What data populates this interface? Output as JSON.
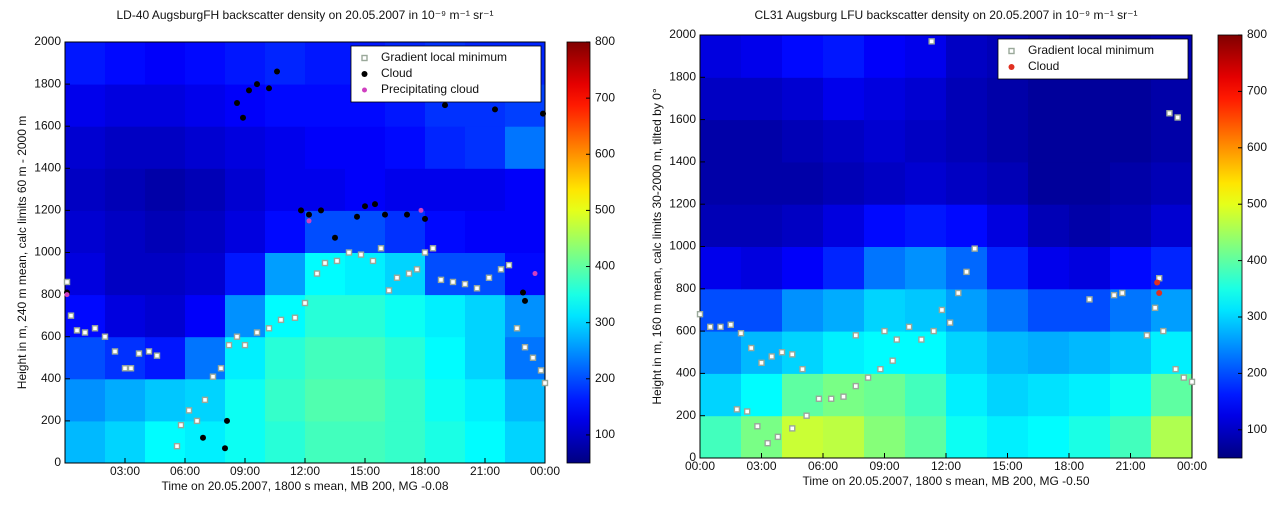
{
  "chart_data": [
    {
      "type": "heatmap",
      "title": "LD-40 AugsburgFH backscatter density on 20.05.2007 in 10⁻⁹ m⁻¹ sr⁻¹",
      "xlabel": "Time on 20.05.2007, 1800 s mean, MB 200, MG -0.08",
      "ylabel": "Height in m, 240 m mean, calc limits 60 m - 2000 m",
      "xlim": [
        0,
        24
      ],
      "ylim": [
        0,
        2000
      ],
      "xticks": [
        {
          "value": 3,
          "label": "03:00"
        },
        {
          "value": 6,
          "label": "06:00"
        },
        {
          "value": 9,
          "label": "09:00"
        },
        {
          "value": 12,
          "label": "12:00"
        },
        {
          "value": 15,
          "label": "15:00"
        },
        {
          "value": 18,
          "label": "18:00"
        },
        {
          "value": 21,
          "label": "21:00"
        },
        {
          "value": 24,
          "label": "00:00"
        }
      ],
      "yticks": [
        0,
        200,
        400,
        600,
        800,
        1000,
        1200,
        1400,
        1600,
        1800,
        2000
      ],
      "clim": [
        50,
        800
      ],
      "cticks": [
        100,
        200,
        300,
        400,
        500,
        600,
        700,
        800
      ],
      "colormap": "jet",
      "xbins": [
        0,
        2,
        4,
        6,
        8,
        10,
        12,
        14,
        16,
        18,
        20,
        22,
        24
      ],
      "ybins": [
        0,
        200,
        400,
        600,
        800,
        1000,
        1200,
        1400,
        1600,
        1800,
        2000
      ],
      "z": [
        [
          280,
          300,
          330,
          320,
          340,
          360,
          380,
          380,
          370,
          350,
          330,
          300
        ],
        [
          250,
          270,
          290,
          300,
          340,
          370,
          390,
          390,
          370,
          340,
          320,
          280
        ],
        [
          200,
          180,
          160,
          230,
          320,
          360,
          380,
          380,
          360,
          330,
          300,
          230
        ],
        [
          150,
          120,
          110,
          140,
          250,
          330,
          360,
          360,
          340,
          320,
          300,
          250
        ],
        [
          120,
          100,
          100,
          110,
          160,
          260,
          330,
          320,
          300,
          200,
          200,
          150
        ],
        [
          110,
          100,
          90,
          100,
          120,
          150,
          200,
          200,
          180,
          150,
          140,
          140
        ],
        [
          100,
          90,
          80,
          90,
          110,
          130,
          130,
          140,
          130,
          130,
          130,
          140
        ],
        [
          110,
          100,
          100,
          110,
          120,
          130,
          140,
          140,
          150,
          170,
          180,
          230
        ],
        [
          130,
          120,
          120,
          130,
          140,
          150,
          150,
          150,
          160,
          180,
          180,
          190
        ],
        [
          160,
          150,
          140,
          150,
          160,
          170,
          160,
          160,
          170,
          180,
          170,
          170
        ]
      ],
      "legend": "upper right",
      "series": [
        {
          "name": "Gradient local minimum",
          "marker": "square",
          "color": "#9aa89a",
          "x": [
            0.1,
            0.3,
            0.6,
            1.0,
            1.5,
            2.0,
            2.5,
            3.0,
            3.3,
            3.7,
            4.2,
            4.6,
            5.6,
            5.8,
            6.2,
            6.6,
            7.0,
            7.4,
            7.8,
            8.2,
            8.6,
            9.0,
            9.6,
            10.2,
            10.8,
            11.5,
            12.0,
            12.6,
            13.0,
            13.6,
            14.2,
            14.8,
            15.4,
            15.8,
            16.2,
            16.6,
            17.2,
            17.6,
            18.0,
            18.4,
            18.8,
            19.4,
            20.0,
            20.6,
            21.2,
            21.8,
            22.2,
            22.6,
            23.0,
            23.4,
            23.8,
            24.0
          ],
          "values": [
            860,
            700,
            630,
            620,
            640,
            600,
            530,
            450,
            450,
            520,
            530,
            510,
            80,
            180,
            250,
            200,
            300,
            410,
            450,
            560,
            600,
            560,
            620,
            640,
            680,
            690,
            760,
            900,
            950,
            960,
            1000,
            990,
            960,
            1020,
            820,
            880,
            900,
            920,
            1000,
            1020,
            870,
            860,
            850,
            830,
            880,
            920,
            940,
            640,
            550,
            500,
            440,
            380
          ]
        },
        {
          "name": "Cloud",
          "marker": "circle",
          "color": "#000000",
          "x": [
            0.1,
            6.9,
            8.0,
            8.1,
            8.6,
            8.9,
            9.2,
            9.6,
            10.2,
            10.6,
            11.8,
            12.2,
            12.8,
            13.5,
            14.6,
            15.0,
            15.5,
            16.0,
            17.1,
            18.0,
            19.0,
            21.5,
            22.9,
            23.0,
            23.9
          ],
          "values": [
            810,
            120,
            70,
            200,
            1710,
            1640,
            1770,
            1800,
            1780,
            1860,
            1200,
            1180,
            1200,
            1070,
            1170,
            1220,
            1230,
            1180,
            1180,
            1160,
            1700,
            1680,
            810,
            770,
            1660
          ]
        },
        {
          "name": "Precipitating cloud",
          "marker": "star",
          "color": "#d040c0",
          "x": [
            0.1,
            12.2,
            17.8,
            23.5
          ],
          "values": [
            800,
            1150,
            1200,
            900
          ]
        }
      ]
    },
    {
      "type": "heatmap",
      "title": "CL31 Augsburg LFU backscatter density on 20.05.2007 in 10⁻⁹ m⁻¹ sr⁻¹",
      "xlabel": "Time on 20.05.2007, 1800 s mean, MB 200, MG -0.50",
      "ylabel": "Height in m, 160 m mean, calc limits 30-2000 m, tilted by 0°",
      "xlim": [
        0,
        24
      ],
      "ylim": [
        0,
        2000
      ],
      "xticks": [
        {
          "value": 0,
          "label": "00:00"
        },
        {
          "value": 3,
          "label": "03:00"
        },
        {
          "value": 6,
          "label": "06:00"
        },
        {
          "value": 9,
          "label": "09:00"
        },
        {
          "value": 12,
          "label": "12:00"
        },
        {
          "value": 15,
          "label": "15:00"
        },
        {
          "value": 18,
          "label": "18:00"
        },
        {
          "value": 21,
          "label": "21:00"
        },
        {
          "value": 24,
          "label": "00:00"
        }
      ],
      "yticks": [
        0,
        200,
        400,
        600,
        800,
        1000,
        1200,
        1400,
        1600,
        1800,
        2000
      ],
      "clim": [
        50,
        800
      ],
      "cticks": [
        100,
        200,
        300,
        400,
        500,
        600,
        700,
        800
      ],
      "colormap": "jet",
      "xbins": [
        0,
        2,
        4,
        6,
        8,
        10,
        12,
        14,
        16,
        18,
        20,
        22,
        24
      ],
      "ybins": [
        0,
        200,
        400,
        600,
        800,
        1000,
        1200,
        1400,
        1600,
        1800,
        2000
      ],
      "z": [
        [
          380,
          420,
          480,
          470,
          430,
          400,
          340,
          320,
          330,
          350,
          380,
          460
        ],
        [
          300,
          330,
          400,
          420,
          410,
          380,
          320,
          300,
          310,
          320,
          340,
          400
        ],
        [
          250,
          280,
          300,
          320,
          330,
          330,
          300,
          280,
          270,
          280,
          290,
          320
        ],
        [
          200,
          200,
          250,
          270,
          300,
          290,
          260,
          230,
          200,
          200,
          230,
          260
        ],
        [
          130,
          120,
          140,
          170,
          230,
          250,
          220,
          170,
          130,
          120,
          150,
          170
        ],
        [
          90,
          90,
          100,
          120,
          150,
          160,
          150,
          120,
          90,
          80,
          90,
          110
        ],
        [
          80,
          80,
          80,
          90,
          100,
          110,
          100,
          90,
          70,
          70,
          80,
          90
        ],
        [
          80,
          80,
          90,
          100,
          110,
          100,
          90,
          80,
          70,
          70,
          70,
          80
        ],
        [
          100,
          100,
          110,
          130,
          120,
          110,
          90,
          80,
          70,
          70,
          70,
          80
        ],
        [
          120,
          130,
          150,
          160,
          140,
          130,
          100,
          90,
          80,
          70,
          80,
          90
        ]
      ],
      "legend": "upper right",
      "series": [
        {
          "name": "Gradient local minimum",
          "marker": "square",
          "color": "#9aa89a",
          "x": [
            0.0,
            0.5,
            1.0,
            1.5,
            2.0,
            2.5,
            3.0,
            3.5,
            4.0,
            4.5,
            5.0,
            1.8,
            2.3,
            2.8,
            3.3,
            3.8,
            4.5,
            5.2,
            5.8,
            6.4,
            7.0,
            7.6,
            8.2,
            8.8,
            9.4,
            7.6,
            9.0,
            9.6,
            10.2,
            10.8,
            11.4,
            11.8,
            12.2,
            12.6,
            13.0,
            13.4,
            19.0,
            20.2,
            20.6,
            21.8,
            22.2,
            22.6,
            23.2,
            23.6,
            24.0,
            22.4,
            11.3,
            22.9,
            23.3
          ],
          "values": [
            680,
            620,
            620,
            630,
            590,
            520,
            450,
            480,
            500,
            490,
            420,
            230,
            220,
            150,
            70,
            100,
            140,
            200,
            280,
            280,
            290,
            340,
            380,
            420,
            460,
            580,
            600,
            560,
            620,
            560,
            600,
            700,
            640,
            780,
            880,
            990,
            750,
            770,
            780,
            580,
            710,
            600,
            420,
            380,
            360,
            850,
            1970,
            1630,
            1610
          ]
        },
        {
          "name": "Cloud",
          "marker": "circle",
          "color": "#e03020",
          "x": [
            22.3,
            22.4
          ],
          "values": [
            830,
            780
          ]
        }
      ]
    }
  ]
}
